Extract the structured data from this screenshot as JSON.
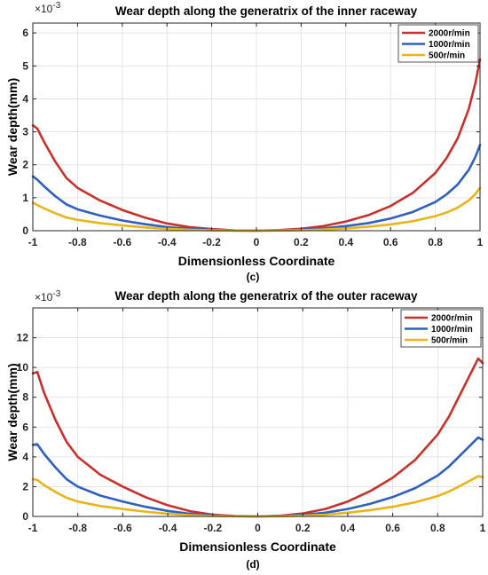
{
  "colors": {
    "red": "#c8302c",
    "blue": "#2f5fbf",
    "yellow": "#e8b41a",
    "axis": "#262626",
    "grid": "#dedede"
  },
  "chart_data": [
    {
      "type": "line",
      "title": "Wear depth along the generatrix of the inner raceway",
      "xlabel": "Dimensionless Coordinate",
      "ylabel": "Wear depth(mm)",
      "y_exponent": "×10",
      "y_exponent_power": "-3",
      "caption": "(c)",
      "xlim": [
        -1,
        1
      ],
      "ylim": [
        0,
        6.3
      ],
      "x_ticks": [
        -1,
        -0.8,
        -0.6,
        -0.4,
        -0.2,
        0,
        0.2,
        0.4,
        0.6,
        0.8,
        1
      ],
      "y_ticks": [
        0,
        1,
        2,
        3,
        4,
        5,
        6
      ],
      "grid": true,
      "legend_position": "top-right",
      "x": [
        -1,
        -0.98,
        -0.95,
        -0.9,
        -0.85,
        -0.8,
        -0.7,
        -0.6,
        -0.5,
        -0.4,
        -0.3,
        -0.2,
        -0.1,
        0,
        0.1,
        0.2,
        0.3,
        0.4,
        0.5,
        0.6,
        0.7,
        0.8,
        0.85,
        0.9,
        0.95,
        0.98,
        1
      ],
      "series": [
        {
          "name": "2000r/min",
          "color": "#c8302c",
          "values": [
            3.2,
            3.1,
            2.7,
            2.1,
            1.6,
            1.3,
            0.92,
            0.63,
            0.4,
            0.22,
            0.11,
            0.05,
            0.01,
            0,
            0.02,
            0.06,
            0.14,
            0.28,
            0.47,
            0.75,
            1.15,
            1.75,
            2.2,
            2.8,
            3.7,
            4.5,
            5.2
          ]
        },
        {
          "name": "1000r/min",
          "color": "#2f5fbf",
          "values": [
            1.65,
            1.55,
            1.35,
            1.05,
            0.8,
            0.65,
            0.46,
            0.31,
            0.2,
            0.11,
            0.055,
            0.025,
            0.005,
            0,
            0.01,
            0.03,
            0.07,
            0.14,
            0.23,
            0.37,
            0.57,
            0.87,
            1.1,
            1.4,
            1.85,
            2.25,
            2.6
          ]
        },
        {
          "name": "500r/min",
          "color": "#e8b41a",
          "values": [
            0.85,
            0.78,
            0.68,
            0.53,
            0.4,
            0.33,
            0.23,
            0.16,
            0.1,
            0.055,
            0.03,
            0.012,
            0.003,
            0,
            0.005,
            0.015,
            0.035,
            0.07,
            0.12,
            0.19,
            0.29,
            0.44,
            0.55,
            0.7,
            0.92,
            1.12,
            1.3
          ]
        }
      ]
    },
    {
      "type": "line",
      "title": "Wear depth along the generatrix of the outer raceway",
      "xlabel": "Dimensionless Coordinate",
      "ylabel": "Wear depth(mm)",
      "y_exponent": "×10",
      "y_exponent_power": "-3",
      "caption": "(d)",
      "xlim": [
        -1,
        1
      ],
      "ylim": [
        0,
        14
      ],
      "x_ticks": [
        -1,
        -0.8,
        -0.6,
        -0.4,
        -0.2,
        0,
        0.2,
        0.4,
        0.6,
        0.8,
        1
      ],
      "y_ticks": [
        0,
        2,
        4,
        6,
        8,
        10,
        12
      ],
      "grid": true,
      "legend_position": "top-right",
      "x": [
        -1,
        -0.98,
        -0.95,
        -0.9,
        -0.85,
        -0.8,
        -0.7,
        -0.6,
        -0.5,
        -0.4,
        -0.3,
        -0.2,
        -0.1,
        0,
        0.1,
        0.2,
        0.3,
        0.4,
        0.5,
        0.6,
        0.7,
        0.8,
        0.85,
        0.9,
        0.95,
        0.98,
        1
      ],
      "series": [
        {
          "name": "2000r/min",
          "color": "#c8302c",
          "values": [
            9.6,
            9.7,
            8.3,
            6.5,
            5.0,
            4.0,
            2.8,
            2.0,
            1.3,
            0.75,
            0.35,
            0.12,
            0.03,
            0,
            0.05,
            0.2,
            0.5,
            1.0,
            1.7,
            2.6,
            3.8,
            5.5,
            6.7,
            8.2,
            9.7,
            10.6,
            10.3
          ]
        },
        {
          "name": "1000r/min",
          "color": "#2f5fbf",
          "values": [
            4.8,
            4.85,
            4.2,
            3.3,
            2.5,
            2.0,
            1.4,
            1.0,
            0.65,
            0.37,
            0.18,
            0.06,
            0.015,
            0,
            0.025,
            0.1,
            0.25,
            0.5,
            0.85,
            1.3,
            1.9,
            2.75,
            3.35,
            4.1,
            4.85,
            5.3,
            5.15
          ]
        },
        {
          "name": "500r/min",
          "color": "#e8b41a",
          "values": [
            2.5,
            2.45,
            2.1,
            1.65,
            1.25,
            1.0,
            0.7,
            0.5,
            0.32,
            0.18,
            0.09,
            0.03,
            0.008,
            0,
            0.012,
            0.05,
            0.12,
            0.25,
            0.42,
            0.65,
            0.95,
            1.37,
            1.67,
            2.05,
            2.45,
            2.7,
            2.65
          ]
        }
      ]
    }
  ]
}
